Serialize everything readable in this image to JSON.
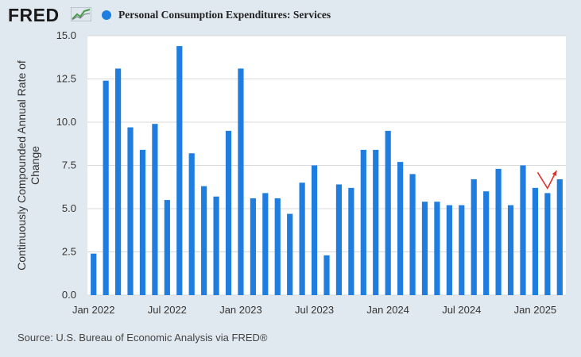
{
  "brand": {
    "logo_text": "FRED"
  },
  "colors": {
    "bar": "#1f7ddf",
    "arrow": "#e0322c",
    "plot_bg": "#ffffff",
    "grid": "#d9d9d9"
  },
  "chart_data": {
    "type": "bar",
    "title": "",
    "series": [
      {
        "name": "Personal Consumption Expenditures: Services",
        "values": [
          2.4,
          12.4,
          13.1,
          9.7,
          8.4,
          9.9,
          5.5,
          14.4,
          8.2,
          6.3,
          5.7,
          9.5,
          13.1,
          5.6,
          5.9,
          5.6,
          4.7,
          6.5,
          7.5,
          2.3,
          6.4,
          6.2,
          8.4,
          8.4,
          9.5,
          7.7,
          7.0,
          5.4,
          5.4,
          5.2,
          5.2,
          6.7,
          6.0,
          7.3,
          5.2,
          7.5,
          6.2,
          5.9,
          6.7
        ]
      }
    ],
    "xlabel": "",
    "ylabel": "Continuously Compounded Annual Rate of Change",
    "ylim": [
      0,
      15
    ],
    "yticks": [
      "0.0",
      "2.5",
      "5.0",
      "7.5",
      "10.0",
      "12.5",
      "15.0"
    ],
    "xtick_labels": [
      {
        "index": 0,
        "label": "Jan 2022"
      },
      {
        "index": 6,
        "label": "Jul 2022"
      },
      {
        "index": 12,
        "label": "Jan 2023"
      },
      {
        "index": 18,
        "label": "Jul 2023"
      },
      {
        "index": 24,
        "label": "Jan 2024"
      },
      {
        "index": 30,
        "label": "Jul 2024"
      },
      {
        "index": 36,
        "label": "Jan 2025"
      }
    ],
    "grid": true,
    "legend": "top-left",
    "annotation": {
      "type": "arrow",
      "description": "red up-turn arrow",
      "points_at_index": [
        36,
        37,
        38
      ]
    }
  },
  "footer": {
    "source": "Source: U.S. Bureau of Economic Analysis via FRED®"
  }
}
